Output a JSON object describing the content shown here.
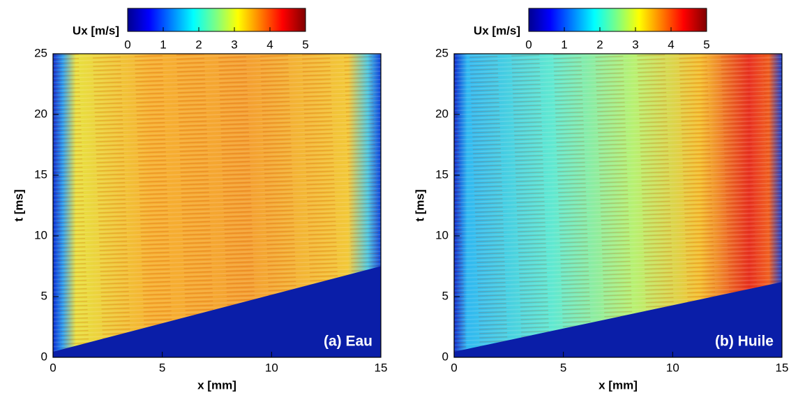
{
  "chart_data": [
    {
      "type": "heatmap",
      "xlabel": "x [mm]",
      "ylabel": "t [ms]",
      "xlim": [
        0,
        15
      ],
      "ylim": [
        0,
        25
      ],
      "xticks": [
        0,
        5,
        10,
        15
      ],
      "yticks": [
        0,
        5,
        10,
        15,
        20,
        25
      ],
      "colorbar": {
        "label": "Ux [m/s]",
        "clim": [
          0,
          5
        ],
        "ticks": [
          0,
          1,
          2,
          3,
          4,
          5
        ]
      },
      "annotation": "(a) Eau"
    },
    {
      "type": "heatmap",
      "xlabel": "x [mm]",
      "ylabel": "t [ms]",
      "xlim": [
        0,
        15
      ],
      "ylim": [
        0,
        25
      ],
      "xticks": [
        0,
        5,
        10,
        15
      ],
      "yticks": [
        0,
        5,
        10,
        15,
        20,
        25
      ],
      "colorbar": {
        "label": "Ux [m/s]",
        "clim": [
          0,
          5
        ],
        "ticks": [
          0,
          1,
          2,
          3,
          4,
          5
        ]
      },
      "annotation": "(b) Huile"
    }
  ]
}
